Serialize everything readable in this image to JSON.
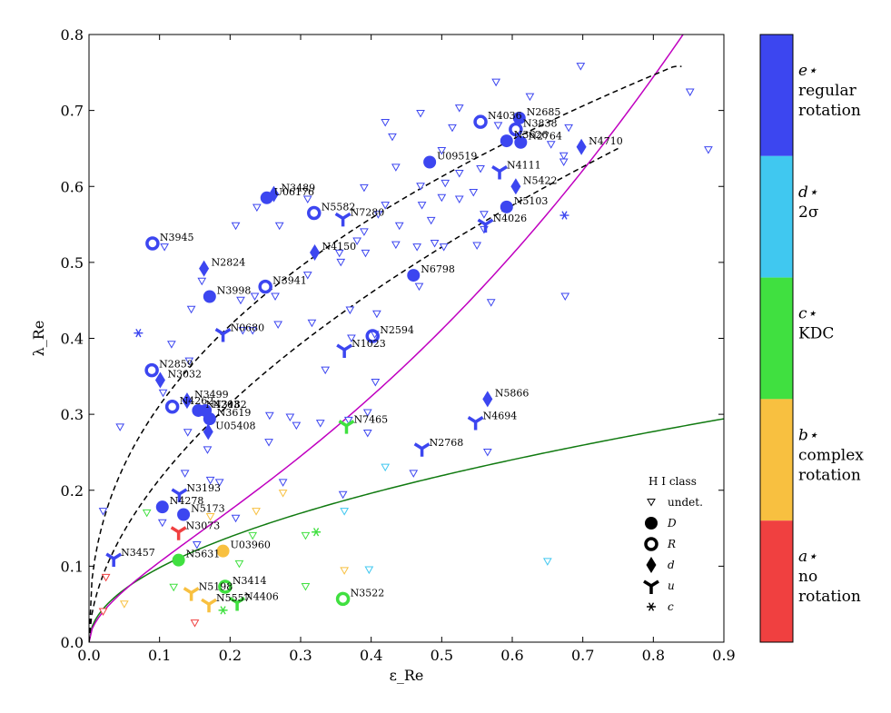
{
  "chart_data": {
    "type": "scatter",
    "xlabel": "ε_Re",
    "ylabel": "λ_Re",
    "xlim": [
      0,
      0.9
    ],
    "ylim": [
      0,
      0.8
    ],
    "xticks": [
      "0.0",
      "0.1",
      "0.2",
      "0.3",
      "0.4",
      "0.5",
      "0.6",
      "0.7",
      "0.8",
      "0.9"
    ],
    "yticks": [
      "0.0",
      "0.1",
      "0.2",
      "0.3",
      "0.4",
      "0.5",
      "0.6",
      "0.7",
      "0.8"
    ],
    "colors": {
      "a": "#f04040",
      "b": "#f8c040",
      "c": "#40e040",
      "d": "#40c8f0",
      "e": "#3c46f0"
    },
    "curve_colors": {
      "magenta": "#c000c0",
      "green": "#107a10",
      "dash": "#000000"
    },
    "named_points": [
      {
        "name": "N4036",
        "x": 0.555,
        "y": 0.685,
        "shape": "R",
        "cls": "e"
      },
      {
        "name": "N2685",
        "x": 0.61,
        "y": 0.69,
        "shape": "D",
        "cls": "e"
      },
      {
        "name": "N3838",
        "x": 0.605,
        "y": 0.675,
        "shape": "R",
        "cls": "e"
      },
      {
        "name": "N3626",
        "x": 0.592,
        "y": 0.66,
        "shape": "D",
        "cls": "e"
      },
      {
        "name": "N2764",
        "x": 0.612,
        "y": 0.658,
        "shape": "D",
        "cls": "e"
      },
      {
        "name": "N4710",
        "x": 0.698,
        "y": 0.652,
        "shape": "d",
        "cls": "e"
      },
      {
        "name": "U09519",
        "x": 0.483,
        "y": 0.632,
        "shape": "D",
        "cls": "e"
      },
      {
        "name": "N4111",
        "x": 0.582,
        "y": 0.62,
        "shape": "u",
        "cls": "e"
      },
      {
        "name": "N5422",
        "x": 0.605,
        "y": 0.6,
        "shape": "d",
        "cls": "e"
      },
      {
        "name": "U06176",
        "x": 0.252,
        "y": 0.585,
        "shape": "D",
        "cls": "e"
      },
      {
        "name": "N3489",
        "x": 0.262,
        "y": 0.59,
        "shape": "d",
        "cls": "e"
      },
      {
        "name": "N5582",
        "x": 0.319,
        "y": 0.565,
        "shape": "R",
        "cls": "e"
      },
      {
        "name": "N7280",
        "x": 0.36,
        "y": 0.558,
        "shape": "u",
        "cls": "e"
      },
      {
        "name": "N5103",
        "x": 0.592,
        "y": 0.573,
        "shape": "D",
        "cls": "e"
      },
      {
        "name": "N4026",
        "x": 0.562,
        "y": 0.55,
        "shape": "u",
        "cls": "e"
      },
      {
        "name": "N3945",
        "x": 0.09,
        "y": 0.525,
        "shape": "R",
        "cls": "e"
      },
      {
        "name": "N4150",
        "x": 0.32,
        "y": 0.513,
        "shape": "d",
        "cls": "e"
      },
      {
        "name": "N2824",
        "x": 0.163,
        "y": 0.492,
        "shape": "d",
        "cls": "e"
      },
      {
        "name": "N6798",
        "x": 0.46,
        "y": 0.483,
        "shape": "D",
        "cls": "e"
      },
      {
        "name": "N3941",
        "x": 0.25,
        "y": 0.468,
        "shape": "R",
        "cls": "e"
      },
      {
        "name": "N3998",
        "x": 0.171,
        "y": 0.455,
        "shape": "D",
        "cls": "e"
      },
      {
        "name": "N0680",
        "x": 0.19,
        "y": 0.406,
        "shape": "u",
        "cls": "e"
      },
      {
        "name": "N2594",
        "x": 0.402,
        "y": 0.403,
        "shape": "R",
        "cls": "e"
      },
      {
        "name": "N1023",
        "x": 0.362,
        "y": 0.385,
        "shape": "u",
        "cls": "e"
      },
      {
        "name": "N2859",
        "x": 0.089,
        "y": 0.358,
        "shape": "R",
        "cls": "e"
      },
      {
        "name": "N3032",
        "x": 0.101,
        "y": 0.345,
        "shape": "d",
        "cls": "e"
      },
      {
        "name": "N4262",
        "x": 0.118,
        "y": 0.31,
        "shape": "R",
        "cls": "e"
      },
      {
        "name": "N3499",
        "x": 0.139,
        "y": 0.318,
        "shape": "d",
        "cls": "e"
      },
      {
        "name": "N4203",
        "x": 0.155,
        "y": 0.305,
        "shape": "D",
        "cls": "e"
      },
      {
        "name": "N3182",
        "x": 0.165,
        "y": 0.305,
        "shape": "D",
        "cls": "e"
      },
      {
        "name": "N3619",
        "x": 0.171,
        "y": 0.294,
        "shape": "D",
        "cls": "e"
      },
      {
        "name": "U05408",
        "x": 0.169,
        "y": 0.277,
        "shape": "d",
        "cls": "e"
      },
      {
        "name": "N5866",
        "x": 0.565,
        "y": 0.32,
        "shape": "d",
        "cls": "e"
      },
      {
        "name": "N7465",
        "x": 0.365,
        "y": 0.285,
        "shape": "u",
        "cls": "c"
      },
      {
        "name": "N4694",
        "x": 0.548,
        "y": 0.29,
        "shape": "u",
        "cls": "e"
      },
      {
        "name": "N2768",
        "x": 0.472,
        "y": 0.255,
        "shape": "u",
        "cls": "e"
      },
      {
        "name": "N3193",
        "x": 0.128,
        "y": 0.195,
        "shape": "u",
        "cls": "e"
      },
      {
        "name": "N4278",
        "x": 0.104,
        "y": 0.178,
        "shape": "D",
        "cls": "e"
      },
      {
        "name": "N5173",
        "x": 0.134,
        "y": 0.168,
        "shape": "D",
        "cls": "e"
      },
      {
        "name": "N3073",
        "x": 0.127,
        "y": 0.145,
        "shape": "u",
        "cls": "a"
      },
      {
        "name": "N3457",
        "x": 0.035,
        "y": 0.11,
        "shape": "u",
        "cls": "e"
      },
      {
        "name": "U03960",
        "x": 0.19,
        "y": 0.12,
        "shape": "D",
        "cls": "b"
      },
      {
        "name": "N5631",
        "x": 0.127,
        "y": 0.108,
        "shape": "D",
        "cls": "c"
      },
      {
        "name": "N3414",
        "x": 0.193,
        "y": 0.073,
        "shape": "R",
        "cls": "c"
      },
      {
        "name": "N3522",
        "x": 0.36,
        "y": 0.057,
        "shape": "R",
        "cls": "c"
      },
      {
        "name": "N5198",
        "x": 0.145,
        "y": 0.065,
        "shape": "u",
        "cls": "b"
      },
      {
        "name": "N4406",
        "x": 0.21,
        "y": 0.052,
        "shape": "u",
        "cls": "c"
      },
      {
        "name": "N5557",
        "x": 0.17,
        "y": 0.05,
        "shape": "u",
        "cls": "b"
      }
    ],
    "undetected_points": [
      {
        "x": 0.697,
        "y": 0.758,
        "cls": "e"
      },
      {
        "x": 0.577,
        "y": 0.737,
        "cls": "e"
      },
      {
        "x": 0.852,
        "y": 0.724,
        "cls": "e"
      },
      {
        "x": 0.625,
        "y": 0.718,
        "cls": "e"
      },
      {
        "x": 0.525,
        "y": 0.703,
        "cls": "e"
      },
      {
        "x": 0.47,
        "y": 0.696,
        "cls": "e"
      },
      {
        "x": 0.42,
        "y": 0.684,
        "cls": "e"
      },
      {
        "x": 0.58,
        "y": 0.68,
        "cls": "e"
      },
      {
        "x": 0.515,
        "y": 0.677,
        "cls": "e"
      },
      {
        "x": 0.68,
        "y": 0.677,
        "cls": "e"
      },
      {
        "x": 0.878,
        "y": 0.648,
        "cls": "e"
      },
      {
        "x": 0.43,
        "y": 0.665,
        "cls": "e"
      },
      {
        "x": 0.655,
        "y": 0.655,
        "cls": "e"
      },
      {
        "x": 0.673,
        "y": 0.64,
        "cls": "e"
      },
      {
        "x": 0.5,
        "y": 0.647,
        "cls": "e"
      },
      {
        "x": 0.673,
        "y": 0.632,
        "cls": "e"
      },
      {
        "x": 0.555,
        "y": 0.623,
        "cls": "e"
      },
      {
        "x": 0.435,
        "y": 0.625,
        "cls": "e"
      },
      {
        "x": 0.525,
        "y": 0.617,
        "cls": "e"
      },
      {
        "x": 0.47,
        "y": 0.6,
        "cls": "e"
      },
      {
        "x": 0.505,
        "y": 0.604,
        "cls": "e"
      },
      {
        "x": 0.39,
        "y": 0.598,
        "cls": "e"
      },
      {
        "x": 0.545,
        "y": 0.592,
        "cls": "e"
      },
      {
        "x": 0.5,
        "y": 0.585,
        "cls": "e"
      },
      {
        "x": 0.525,
        "y": 0.583,
        "cls": "e"
      },
      {
        "x": 0.31,
        "y": 0.583,
        "cls": "e"
      },
      {
        "x": 0.42,
        "y": 0.575,
        "cls": "e"
      },
      {
        "x": 0.238,
        "y": 0.572,
        "cls": "e"
      },
      {
        "x": 0.472,
        "y": 0.575,
        "cls": "e"
      },
      {
        "x": 0.56,
        "y": 0.563,
        "cls": "e"
      },
      {
        "x": 0.41,
        "y": 0.563,
        "cls": "e"
      },
      {
        "x": 0.27,
        "y": 0.548,
        "cls": "e"
      },
      {
        "x": 0.485,
        "y": 0.555,
        "cls": "e"
      },
      {
        "x": 0.44,
        "y": 0.548,
        "cls": "e"
      },
      {
        "x": 0.208,
        "y": 0.548,
        "cls": "e"
      },
      {
        "x": 0.56,
        "y": 0.543,
        "cls": "e"
      },
      {
        "x": 0.39,
        "y": 0.54,
        "cls": "e"
      },
      {
        "x": 0.38,
        "y": 0.528,
        "cls": "e"
      },
      {
        "x": 0.435,
        "y": 0.523,
        "cls": "e"
      },
      {
        "x": 0.503,
        "y": 0.52,
        "cls": "e"
      },
      {
        "x": 0.465,
        "y": 0.52,
        "cls": "e"
      },
      {
        "x": 0.49,
        "y": 0.525,
        "cls": "e"
      },
      {
        "x": 0.107,
        "y": 0.52,
        "cls": "e"
      },
      {
        "x": 0.55,
        "y": 0.522,
        "cls": "e"
      },
      {
        "x": 0.355,
        "y": 0.512,
        "cls": "e"
      },
      {
        "x": 0.392,
        "y": 0.512,
        "cls": "e"
      },
      {
        "x": 0.357,
        "y": 0.5,
        "cls": "e"
      },
      {
        "x": 0.31,
        "y": 0.483,
        "cls": "e"
      },
      {
        "x": 0.16,
        "y": 0.475,
        "cls": "e"
      },
      {
        "x": 0.468,
        "y": 0.468,
        "cls": "e"
      },
      {
        "x": 0.264,
        "y": 0.455,
        "cls": "e"
      },
      {
        "x": 0.235,
        "y": 0.455,
        "cls": "e"
      },
      {
        "x": 0.57,
        "y": 0.447,
        "cls": "e"
      },
      {
        "x": 0.675,
        "y": 0.455,
        "cls": "e"
      },
      {
        "x": 0.215,
        "y": 0.45,
        "cls": "e"
      },
      {
        "x": 0.145,
        "y": 0.438,
        "cls": "e"
      },
      {
        "x": 0.37,
        "y": 0.437,
        "cls": "e"
      },
      {
        "x": 0.408,
        "y": 0.432,
        "cls": "e"
      },
      {
        "x": 0.268,
        "y": 0.418,
        "cls": "e"
      },
      {
        "x": 0.316,
        "y": 0.42,
        "cls": "e"
      },
      {
        "x": 0.218,
        "y": 0.41,
        "cls": "e"
      },
      {
        "x": 0.232,
        "y": 0.41,
        "cls": "e"
      },
      {
        "x": 0.405,
        "y": 0.405,
        "cls": "e"
      },
      {
        "x": 0.372,
        "y": 0.4,
        "cls": "e"
      },
      {
        "x": 0.117,
        "y": 0.392,
        "cls": "e"
      },
      {
        "x": 0.142,
        "y": 0.37,
        "cls": "e"
      },
      {
        "x": 0.335,
        "y": 0.358,
        "cls": "e"
      },
      {
        "x": 0.406,
        "y": 0.342,
        "cls": "e"
      },
      {
        "x": 0.105,
        "y": 0.328,
        "cls": "e"
      },
      {
        "x": 0.395,
        "y": 0.302,
        "cls": "e"
      },
      {
        "x": 0.256,
        "y": 0.298,
        "cls": "e"
      },
      {
        "x": 0.285,
        "y": 0.296,
        "cls": "e"
      },
      {
        "x": 0.328,
        "y": 0.288,
        "cls": "e"
      },
      {
        "x": 0.368,
        "y": 0.292,
        "cls": "e"
      },
      {
        "x": 0.294,
        "y": 0.285,
        "cls": "e"
      },
      {
        "x": 0.044,
        "y": 0.283,
        "cls": "e"
      },
      {
        "x": 0.395,
        "y": 0.275,
        "cls": "e"
      },
      {
        "x": 0.14,
        "y": 0.276,
        "cls": "e"
      },
      {
        "x": 0.255,
        "y": 0.263,
        "cls": "e"
      },
      {
        "x": 0.168,
        "y": 0.253,
        "cls": "e"
      },
      {
        "x": 0.565,
        "y": 0.25,
        "cls": "e"
      },
      {
        "x": 0.46,
        "y": 0.222,
        "cls": "e"
      },
      {
        "x": 0.136,
        "y": 0.222,
        "cls": "e"
      },
      {
        "x": 0.172,
        "y": 0.213,
        "cls": "e"
      },
      {
        "x": 0.185,
        "y": 0.21,
        "cls": "e"
      },
      {
        "x": 0.275,
        "y": 0.21,
        "cls": "e"
      },
      {
        "x": 0.36,
        "y": 0.194,
        "cls": "e"
      },
      {
        "x": 0.02,
        "y": 0.172,
        "cls": "e"
      },
      {
        "x": 0.208,
        "y": 0.163,
        "cls": "e"
      },
      {
        "x": 0.104,
        "y": 0.157,
        "cls": "e"
      },
      {
        "x": 0.153,
        "y": 0.128,
        "cls": "e"
      },
      {
        "x": 0.42,
        "y": 0.23,
        "cls": "d"
      },
      {
        "x": 0.362,
        "y": 0.172,
        "cls": "d"
      },
      {
        "x": 0.397,
        "y": 0.095,
        "cls": "d"
      },
      {
        "x": 0.65,
        "y": 0.106,
        "cls": "d"
      },
      {
        "x": 0.275,
        "y": 0.196,
        "cls": "b"
      },
      {
        "x": 0.237,
        "y": 0.172,
        "cls": "b"
      },
      {
        "x": 0.172,
        "y": 0.165,
        "cls": "b"
      },
      {
        "x": 0.362,
        "y": 0.094,
        "cls": "b"
      },
      {
        "x": 0.05,
        "y": 0.05,
        "cls": "b"
      },
      {
        "x": 0.082,
        "y": 0.17,
        "cls": "c"
      },
      {
        "x": 0.307,
        "y": 0.14,
        "cls": "c"
      },
      {
        "x": 0.232,
        "y": 0.14,
        "cls": "c"
      },
      {
        "x": 0.213,
        "y": 0.103,
        "cls": "c"
      },
      {
        "x": 0.307,
        "y": 0.073,
        "cls": "c"
      },
      {
        "x": 0.12,
        "y": 0.072,
        "cls": "c"
      },
      {
        "x": 0.024,
        "y": 0.085,
        "cls": "a"
      },
      {
        "x": 0.15,
        "y": 0.025,
        "cls": "a"
      },
      {
        "x": 0.02,
        "y": 0.04,
        "cls": "a"
      }
    ],
    "star_points": [
      {
        "x": 0.07,
        "y": 0.407,
        "cls": "e"
      },
      {
        "x": 0.674,
        "y": 0.562,
        "cls": "e"
      },
      {
        "x": 0.322,
        "y": 0.145,
        "cls": "c"
      },
      {
        "x": 0.19,
        "y": 0.042,
        "cls": "c"
      }
    ],
    "legend": {
      "title": "H I class",
      "entries": [
        {
          "shape": "tri",
          "label": "undet."
        },
        {
          "shape": "D",
          "label": "D"
        },
        {
          "shape": "R",
          "label": "R"
        },
        {
          "shape": "d",
          "label": "d"
        },
        {
          "shape": "u",
          "label": "u"
        },
        {
          "shape": "star",
          "label": "c"
        }
      ]
    },
    "colorbar": [
      {
        "key": "e",
        "symbol": "e⋆",
        "lines": [
          "regular",
          "rotation"
        ]
      },
      {
        "key": "d",
        "symbol": "d⋆",
        "lines": [
          "2σ"
        ]
      },
      {
        "key": "c",
        "symbol": "c⋆",
        "lines": [
          "KDC"
        ]
      },
      {
        "key": "b",
        "symbol": "b⋆",
        "lines": [
          "complex",
          "rotation"
        ]
      },
      {
        "key": "a",
        "symbol": "a⋆",
        "lines": [
          "no",
          "rotation"
        ]
      }
    ]
  }
}
